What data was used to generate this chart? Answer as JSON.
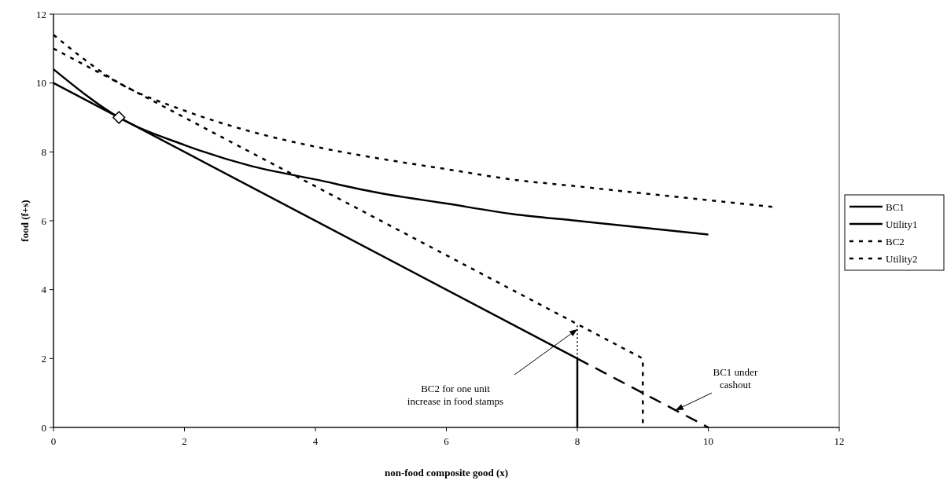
{
  "chart_data": {
    "type": "line",
    "xlabel": "non-food composite good (x)",
    "ylabel": "food (f+s)",
    "xlim": [
      0,
      12
    ],
    "xticks": [
      0,
      2,
      4,
      6,
      8,
      10,
      12
    ],
    "ylim": [
      0,
      12
    ],
    "yticks": [
      0,
      2,
      4,
      6,
      8,
      10,
      12
    ],
    "grid": false,
    "legend": "right",
    "marker": "none",
    "series": [
      {
        "name": "BC1",
        "color": "#000000",
        "line_style": "solid",
        "x": [
          0,
          8,
          8
        ],
        "values": [
          10,
          2,
          0
        ]
      },
      {
        "name": "Utility1",
        "color": "#000000",
        "line_style": "solid",
        "x": [
          0,
          1,
          2,
          3,
          4,
          5,
          6,
          7,
          8,
          9,
          10
        ],
        "values": [
          10.4,
          9,
          8.2,
          7.6,
          7.2,
          6.8,
          6.5,
          6.2,
          6,
          5.8,
          5.6
        ]
      },
      {
        "name": "BC2",
        "color": "#000000",
        "line_style": "dashed",
        "x": [
          0,
          9,
          9
        ],
        "values": [
          11,
          2,
          0
        ]
      },
      {
        "name": "Utility2",
        "color": "#000000",
        "line_style": "dashed",
        "x": [
          0,
          1,
          2,
          3,
          4,
          5,
          6,
          7,
          8,
          9,
          10,
          11
        ],
        "values": [
          11.4,
          10,
          9.2,
          8.6,
          8.15,
          7.8,
          7.5,
          7.2,
          7,
          6.8,
          6.6,
          6.4
        ]
      },
      {
        "color": "#000000",
        "line_style": "dashed",
        "x": [
          8,
          10
        ],
        "values": [
          2,
          0
        ]
      },
      {
        "color": "#000000",
        "line_style": "dotted",
        "x": [
          8,
          8
        ],
        "values": [
          2,
          3
        ]
      },
      {
        "type": "scatter",
        "color": "#000000",
        "marker": "diamond",
        "x": [
          1
        ],
        "values": [
          9
        ]
      }
    ],
    "annotations": [
      "BC2 for one unit increase in food stamps",
      {
        "text": "BC1 under cashout",
        "x": 9.5,
        "y": 0.5
      }
    ]
  }
}
